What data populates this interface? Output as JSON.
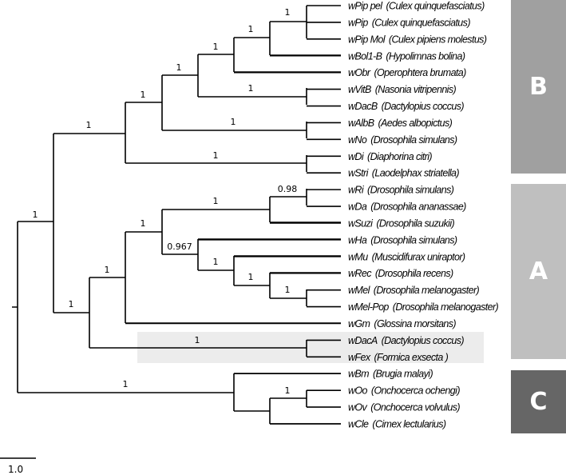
{
  "leaves": [
    {
      "name": "wPip pel",
      "host": "(Culex quinquefasciatus)"
    },
    {
      "name": "wPip",
      "host": "(Culex quinquefasciatus)"
    },
    {
      "name": "wPip Mol",
      "host": "(Culex pipiens molestus)"
    },
    {
      "name": "wBol1-B",
      "host": "(Hypolimnas bolina)"
    },
    {
      "name": "wObr",
      "host": "(Operophtera brumata)"
    },
    {
      "name": "wVitB",
      "host": "(Nasonia vitripennis)"
    },
    {
      "name": "wDacB",
      "host": "(Dactylopius coccus)"
    },
    {
      "name": "wAlbB",
      "host": "(Aedes albopictus)"
    },
    {
      "name": "wNo",
      "host": "(Drosophila simulans)"
    },
    {
      "name": "wDi",
      "host": "(Diaphorina citri)"
    },
    {
      "name": "wStri",
      "host": "(Laodelphax striatella)"
    },
    {
      "name": "wRi",
      "host": "(Drosophila simulans)"
    },
    {
      "name": "wDa",
      "host": "(Drosophila ananassae)"
    },
    {
      "name": "wSuzi",
      "host": "(Drosophila suzukii)"
    },
    {
      "name": "wHa",
      "host": "(Drosophila simulans)"
    },
    {
      "name": "wMu",
      "host": "(Muscidifurax uniraptor)"
    },
    {
      "name": "wRec",
      "host": "(Drosophila recens)"
    },
    {
      "name": "wMel",
      "host": "(Drosophila melanogaster)"
    },
    {
      "name": "wMel-Pop",
      "host": "(Drosophila melanogaster)"
    },
    {
      "name": "wGm",
      "host": "(Glossina morsitans)"
    },
    {
      "name": "wDacA",
      "host": "(Dactylopius coccus)"
    },
    {
      "name": "wFex",
      "host": "(Formica exsecta )"
    },
    {
      "name": "wBm",
      "host": "(Brugia malayi)"
    },
    {
      "name": "wOo",
      "host": "(Onchocerca ochengi)"
    },
    {
      "name": "wOv",
      "host": "(Onchocerca volvulus)"
    },
    {
      "name": "wCle",
      "host": "(Cimex lectularius)"
    }
  ],
  "support": [
    "1",
    "1",
    "1",
    "1",
    "1",
    "1",
    "1",
    "1",
    "1",
    "0.98",
    "1",
    "1",
    "0.967",
    "1",
    "1",
    "1",
    "1",
    "1",
    "1",
    "1",
    "1",
    "1"
  ],
  "clades": [
    {
      "label": "B",
      "color": "#a0a0a0"
    },
    {
      "label": "A",
      "color": "#bfbfbf"
    },
    {
      "label": "C",
      "color": "#666666"
    }
  ],
  "highlight_color": "#ececec",
  "scale_bar": {
    "label": "1.0"
  }
}
